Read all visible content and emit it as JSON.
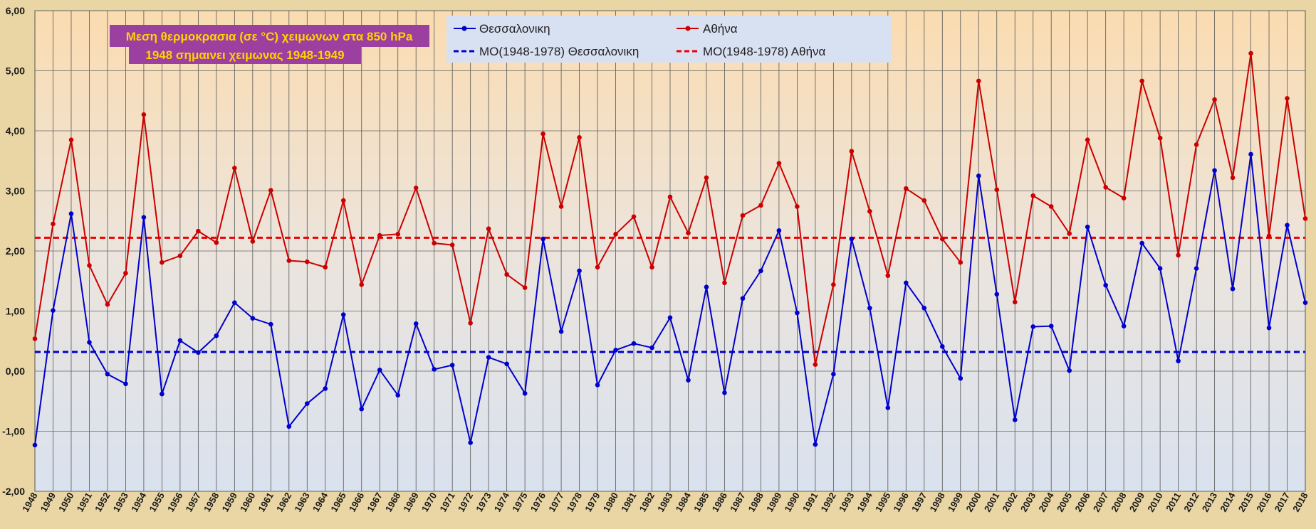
{
  "chart_data": {
    "type": "line",
    "title": "Μεση θερμοκρασια (σε °C) χειμωνων στα 850 hPa",
    "subtitle": "1948 σημαινει χειμωνας 1948-1949",
    "xlabel": "",
    "ylabel": "",
    "ylim": [
      -2,
      6
    ],
    "grid": true,
    "legend_placement": "top-center",
    "yticks": [
      "-2,00",
      "-1,00",
      "0,00",
      "1,00",
      "2,00",
      "3,00",
      "4,00",
      "5,00",
      "6,00"
    ],
    "categories": [
      "1948",
      "1949",
      "1950",
      "1951",
      "1952",
      "1953",
      "1954",
      "1955",
      "1956",
      "1957",
      "1958",
      "1959",
      "1960",
      "1961",
      "1962",
      "1963",
      "1964",
      "1965",
      "1966",
      "1967",
      "1968",
      "1969",
      "1970",
      "1971",
      "1972",
      "1973",
      "1974",
      "1975",
      "1976",
      "1977",
      "1978",
      "1979",
      "1980",
      "1981",
      "1982",
      "1983",
      "1984",
      "1985",
      "1986",
      "1987",
      "1988",
      "1989",
      "1990",
      "1991",
      "1992",
      "1993",
      "1994",
      "1995",
      "1996",
      "1997",
      "1998",
      "1999",
      "2000",
      "2001",
      "2002",
      "2003",
      "2004",
      "2005",
      "2006",
      "2007",
      "2008",
      "2009",
      "2010",
      "2011",
      "2012",
      "2013",
      "2014",
      "2015",
      "2016",
      "2017",
      "2018"
    ],
    "series": [
      {
        "name": "Θεσσαλονικη",
        "color": "#0000cc",
        "values": [
          -1.23,
          1.01,
          2.62,
          0.48,
          -0.05,
          -0.21,
          2.56,
          -0.38,
          0.51,
          0.31,
          0.59,
          1.14,
          0.88,
          0.78,
          -0.92,
          -0.54,
          -0.29,
          0.94,
          -0.63,
          0.02,
          -0.4,
          0.79,
          0.03,
          0.1,
          -1.19,
          0.23,
          0.12,
          -0.37,
          2.2,
          0.66,
          1.67,
          -0.23,
          0.35,
          0.46,
          0.39,
          0.89,
          -0.15,
          1.4,
          -0.36,
          1.21,
          1.67,
          2.34,
          0.97,
          -1.22,
          -0.05,
          2.2,
          1.05,
          -0.61,
          1.47,
          1.05,
          0.41,
          -0.12,
          3.25,
          1.28,
          -0.81,
          0.74,
          0.75,
          0.01,
          2.4,
          1.43,
          0.75,
          2.13,
          1.71,
          0.17,
          1.71,
          3.34,
          1.37,
          3.61,
          0.72,
          2.43,
          1.14
        ]
      },
      {
        "name": "Αθήνα",
        "color": "#cc0000",
        "values": [
          0.54,
          2.45,
          3.85,
          1.76,
          1.11,
          1.63,
          4.27,
          1.81,
          1.92,
          2.33,
          2.14,
          3.38,
          2.16,
          3.01,
          1.84,
          1.82,
          1.73,
          2.84,
          1.44,
          2.26,
          2.28,
          3.05,
          2.13,
          2.1,
          0.8,
          2.37,
          1.61,
          1.39,
          3.95,
          2.74,
          3.89,
          1.73,
          2.28,
          2.57,
          1.73,
          2.9,
          2.3,
          3.22,
          1.47,
          2.59,
          2.76,
          3.46,
          2.74,
          0.11,
          1.44,
          3.66,
          2.66,
          1.59,
          3.04,
          2.84,
          2.2,
          1.81,
          4.83,
          3.02,
          1.15,
          2.92,
          2.74,
          2.29,
          3.85,
          3.06,
          2.88,
          4.83,
          3.88,
          1.93,
          3.77,
          4.52,
          3.22,
          5.29,
          2.25,
          4.54,
          2.54
        ]
      },
      {
        "name": "ΜΟ(1948-1978) Θεσσαλονικη",
        "color": "#0000cc",
        "style": "dashed",
        "value": 0.32
      },
      {
        "name": "ΜΟ(1948-1978) Αθήνα",
        "color": "#ee0000",
        "style": "dashed",
        "value": 2.22
      }
    ]
  }
}
